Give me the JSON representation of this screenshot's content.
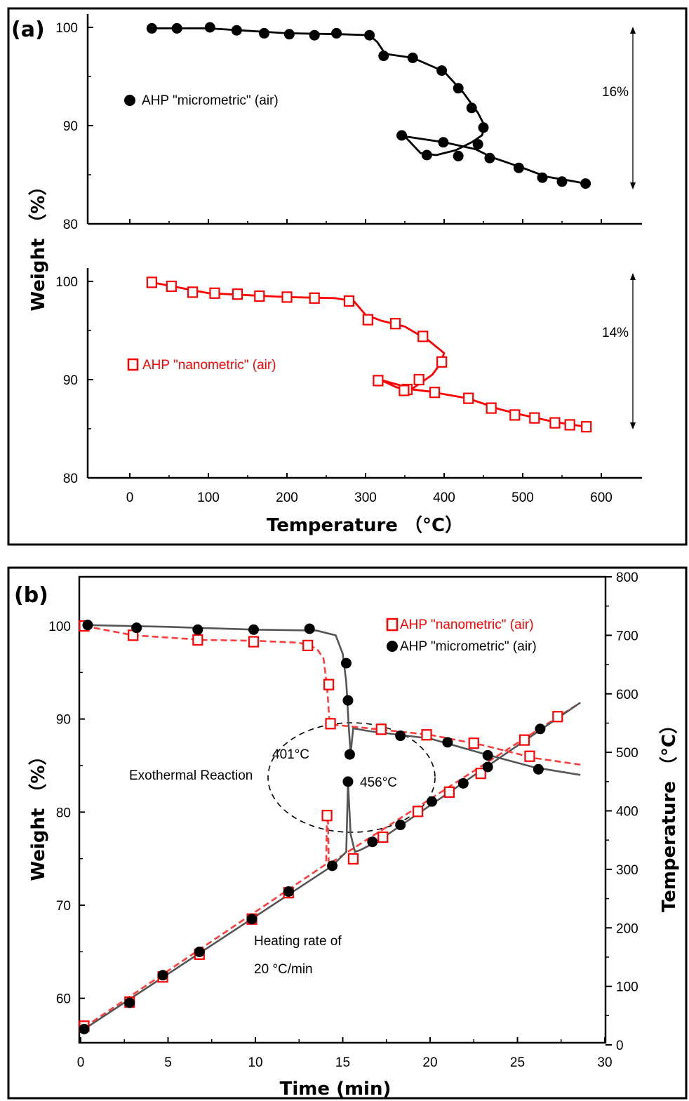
{
  "chart_data": [
    {
      "type": "line",
      "panel_label": "(a)",
      "xlabel": "Temperature （°C）",
      "ylabel": "Weight （%）",
      "xlim": [
        -60,
        650
      ],
      "x_ticks": [
        0,
        100,
        200,
        300,
        400,
        500,
        600
      ],
      "subplots": [
        {
          "ylim": [
            80,
            101.5
          ],
          "y_ticks": [
            80,
            90,
            100
          ],
          "color": "#000000",
          "marker": "filled-circle",
          "series": [
            {
              "name": "AHP \"micrometric\" (air)",
              "x": [
                28,
                60,
                102,
                136,
                171,
                203,
                235,
                263,
                305,
                323,
                360,
                397,
                418,
                435,
                450,
                346,
                378,
                399,
                418,
                443,
                458,
                495,
                525,
                550,
                580
              ],
              "y": [
                99.9,
                99.9,
                100.0,
                99.7,
                99.4,
                99.3,
                99.2,
                99.4,
                99.2,
                97.1,
                96.9,
                95.6,
                93.8,
                91.8,
                89.8,
                89.0,
                87.0,
                88.3,
                86.9,
                88.1,
                86.7,
                85.7,
                84.7,
                84.3,
                84.1
              ]
            }
          ],
          "curve": {
            "x": [
              28,
              100,
              200,
              270,
              305,
              315,
              325,
              360,
              400,
              425,
              443,
              452,
              448,
              435,
              415,
              390,
              370,
              350,
              400,
              440,
              460,
              500,
              530,
              560,
              580
            ],
            "y": [
              99.9,
              99.9,
              99.4,
              99.3,
              99.2,
              98.5,
              97.3,
              96.9,
              95.5,
              93.3,
              91.3,
              89.9,
              89.0,
              88.3,
              87.5,
              87.0,
              87.2,
              88.9,
              88.3,
              87.6,
              86.8,
              85.7,
              84.8,
              84.4,
              84.1
            ]
          },
          "annotation": "16%"
        },
        {
          "ylim": [
            80,
            101.5
          ],
          "y_ticks": [
            80,
            90,
            100
          ],
          "color": "#ff0000",
          "marker": "open-square",
          "series": [
            {
              "name": "AHP \"nanometric\" (air)",
              "x": [
                28,
                53,
                80,
                108,
                137,
                165,
                200,
                235,
                279,
                303,
                338,
                373,
                397,
                368,
                353,
                316,
                349,
                388,
                431,
                460,
                490,
                515,
                541,
                560,
                581
              ],
              "y": [
                99.9,
                99.5,
                98.9,
                98.8,
                98.7,
                98.5,
                98.4,
                98.3,
                98.0,
                96.1,
                95.7,
                94.4,
                91.8,
                90.0,
                89.0,
                89.9,
                88.9,
                88.7,
                88.1,
                87.1,
                86.4,
                86.1,
                85.6,
                85.4,
                85.2
              ]
            }
          ],
          "curve": {
            "x": [
              28,
              100,
              200,
              260,
              285,
              300,
              320,
              350,
              380,
              400,
              395,
              385,
              360,
              345,
              318,
              340,
              380,
              430,
              470,
              500,
              540,
              581
            ],
            "y": [
              99.9,
              98.8,
              98.4,
              98.3,
              98.0,
              96.6,
              96.0,
              95.4,
              94.0,
              92.7,
              91.6,
              90.5,
              89.1,
              89.4,
              90.0,
              89.2,
              88.8,
              88.1,
              87.0,
              86.4,
              85.7,
              85.2
            ]
          },
          "annotation": "14%"
        }
      ]
    },
    {
      "type": "line",
      "panel_label": "(b)",
      "xlabel": "Time (min)",
      "ylabel": "Weight （%）",
      "y2label": "Temperature （°C）",
      "xlim": [
        0,
        30
      ],
      "x_ticks": [
        0,
        5,
        10,
        15,
        20,
        25,
        30
      ],
      "ylim": [
        55,
        104.5
      ],
      "y_ticks": [
        60,
        70,
        80,
        90,
        100
      ],
      "y2lim": [
        0,
        800
      ],
      "y2_ticks": [
        0,
        100,
        200,
        300,
        400,
        500,
        600,
        700,
        800
      ],
      "legend": [
        "AHP \"nanometric\" (air)",
        "AHP \"micrometric\" (air)"
      ],
      "legend_position": "top-right",
      "series": [
        {
          "name": "AHP \"nanometric\" (air)",
          "color": "#ff0000",
          "axis": "left",
          "x": [
            0.2,
            3.0,
            6.7,
            9.9,
            13.0,
            14.2,
            14.3,
            17.2,
            19.8,
            22.5,
            25.7
          ],
          "y": [
            100.0,
            99.0,
            98.5,
            98.3,
            97.9,
            93.7,
            89.5,
            88.9,
            88.3,
            87.4,
            86.0
          ]
        },
        {
          "name": "AHP \"micrometric\" (air)",
          "color": "#000000",
          "axis": "left",
          "x": [
            0.4,
            3.2,
            6.7,
            9.9,
            13.1,
            15.2,
            15.3,
            15.4,
            18.3,
            21.0,
            23.3,
            26.2
          ],
          "y": [
            100.1,
            99.8,
            99.6,
            99.6,
            99.7,
            96.0,
            92.0,
            86.2,
            88.2,
            87.5,
            86.1,
            84.6
          ]
        },
        {
          "name": "AHP \"nanometric\" (air) temperature",
          "color": "#ff0000",
          "axis": "right",
          "x": [
            0.2,
            2.8,
            4.7,
            6.8,
            9.8,
            11.9,
            14.1,
            15.6,
            17.3,
            19.3,
            21.1,
            22.9,
            25.4,
            27.3
          ],
          "y": [
            32,
            73,
            116,
            155,
            215,
            260,
            392,
            318,
            355,
            399,
            432,
            464,
            521,
            561
          ]
        },
        {
          "name": "AHP \"micrometric\" (air) temperature",
          "color": "#000000",
          "axis": "right",
          "x": [
            0.2,
            2.8,
            4.7,
            6.8,
            9.8,
            11.9,
            14.4,
            15.3,
            16.7,
            18.3,
            20.1,
            21.9,
            23.3,
            26.3
          ],
          "y": [
            27,
            72,
            119,
            159,
            215,
            262,
            306,
            450,
            347,
            376,
            416,
            447,
            475,
            540
          ]
        }
      ],
      "annotations": [
        "Exothermal Reaction",
        "401°C",
        "456°C",
        "Heating rate of",
        "20 °C/min"
      ]
    }
  ]
}
